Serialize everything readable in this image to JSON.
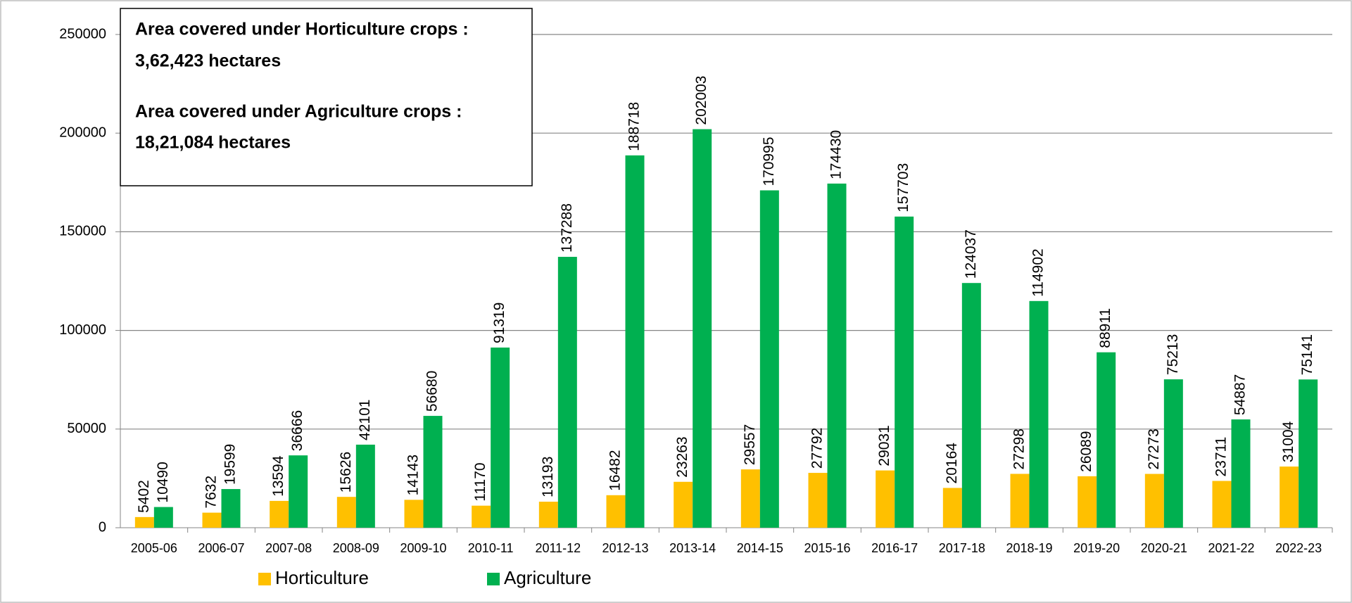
{
  "chart_data": {
    "type": "bar",
    "annotations": [
      {
        "text": "Area covered under Horticulture crops :",
        "color": "#31849b"
      },
      {
        "text": "3,62,423  hectares",
        "color": "#000000"
      },
      {
        "text": "Area covered under Agriculture crops :",
        "color": "#e36c09"
      },
      {
        "text": "18,21,084 hectares",
        "color": "#000000"
      }
    ],
    "categories": [
      "2005-06",
      "2006-07",
      "2007-08",
      "2008-09",
      "2009-10",
      "2010-11",
      "2011-12",
      "2012-13",
      "2013-14",
      "2014-15",
      "2015-16",
      "2016-17",
      "2017-18",
      "2018-19",
      "2019-20",
      "2020-21",
      "2021-22",
      "2022-23"
    ],
    "series": [
      {
        "name": "Horticulture",
        "color": "#ffc000",
        "values": [
          5402,
          7632,
          13594,
          15626,
          14143,
          11170,
          13193,
          16482,
          23263,
          29557,
          27792,
          29031,
          20164,
          27298,
          26089,
          27273,
          23711,
          31004
        ]
      },
      {
        "name": "Agriculture",
        "color": "#00b050",
        "values": [
          10490,
          19599,
          36666,
          42101,
          56680,
          91319,
          137288,
          188718,
          202003,
          170995,
          174430,
          157703,
          124037,
          114902,
          88911,
          75213,
          54887,
          75141
        ]
      }
    ],
    "ylim": [
      0,
      250000
    ],
    "yticks": [
      0,
      50000,
      100000,
      150000,
      200000,
      250000
    ],
    "grid": true,
    "legend": "bottom"
  }
}
